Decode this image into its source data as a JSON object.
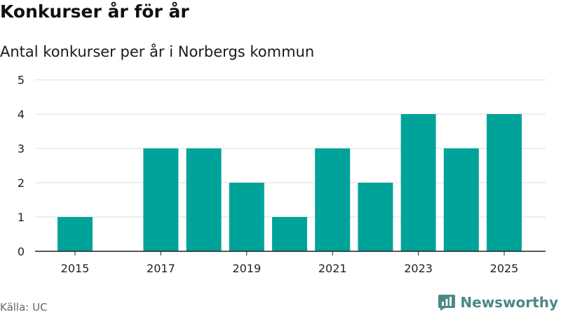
{
  "header": {
    "title": "Konkurser år för år",
    "subtitle": "Antal konkurser per år i Norbergs kommun"
  },
  "footer": {
    "source": "Källa: UC",
    "brand": "Newsworthy",
    "brand_icon": "bar-chart-logo-icon"
  },
  "colors": {
    "bar": "#00a39a",
    "grid": "#dddddd",
    "axis": "#222222",
    "brand": "#4a8a86"
  },
  "chart_data": {
    "type": "bar",
    "title": "Konkurser år för år",
    "subtitle": "Antal konkurser per år i Norbergs kommun",
    "xlabel": "",
    "ylabel": "",
    "categories": [
      "2015",
      "2016",
      "2017",
      "2018",
      "2019",
      "2020",
      "2021",
      "2022",
      "2023",
      "2024",
      "2025"
    ],
    "values": [
      1,
      0,
      3,
      3,
      2,
      1,
      3,
      2,
      4,
      3,
      4
    ],
    "x_tick_labels": [
      "2015",
      "2017",
      "2019",
      "2021",
      "2023",
      "2025"
    ],
    "y_ticks": [
      0,
      1,
      2,
      3,
      4,
      5
    ],
    "ylim": [
      0,
      5
    ],
    "grid": true,
    "legend": "none"
  }
}
